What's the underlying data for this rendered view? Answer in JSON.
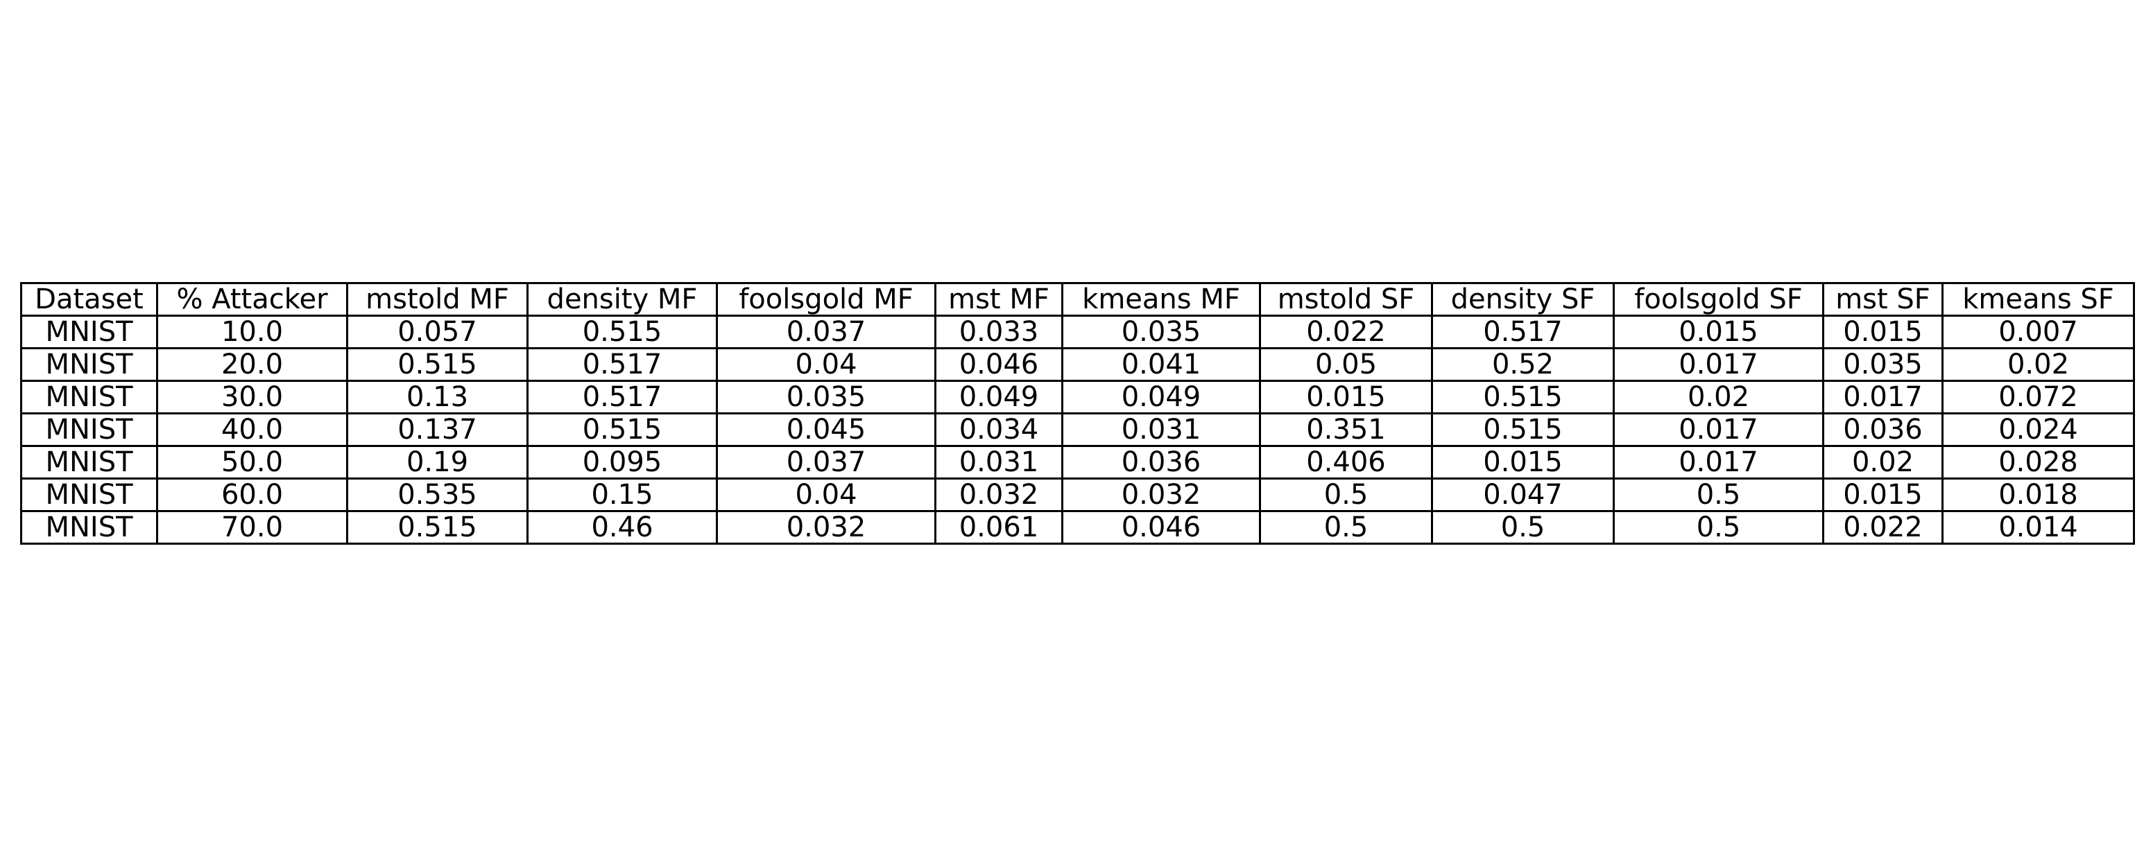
{
  "chart_data": {
    "type": "table",
    "columns": [
      "Dataset",
      "% Attacker",
      "mstold MF",
      "density MF",
      "foolsgold MF",
      "mst MF",
      "kmeans MF",
      "mstold SF",
      "density SF",
      "foolsgold SF",
      "mst SF",
      "kmeans SF"
    ],
    "rows": [
      [
        "MNIST",
        "10.0",
        "0.057",
        "0.515",
        "0.037",
        "0.033",
        "0.035",
        "0.022",
        "0.517",
        "0.015",
        "0.015",
        "0.007"
      ],
      [
        "MNIST",
        "20.0",
        "0.515",
        "0.517",
        "0.04",
        "0.046",
        "0.041",
        "0.05",
        "0.52",
        "0.017",
        "0.035",
        "0.02"
      ],
      [
        "MNIST",
        "30.0",
        "0.13",
        "0.517",
        "0.035",
        "0.049",
        "0.049",
        "0.015",
        "0.515",
        "0.02",
        "0.017",
        "0.072"
      ],
      [
        "MNIST",
        "40.0",
        "0.137",
        "0.515",
        "0.045",
        "0.034",
        "0.031",
        "0.351",
        "0.515",
        "0.017",
        "0.036",
        "0.024"
      ],
      [
        "MNIST",
        "50.0",
        "0.19",
        "0.095",
        "0.037",
        "0.031",
        "0.036",
        "0.406",
        "0.015",
        "0.017",
        "0.02",
        "0.028"
      ],
      [
        "MNIST",
        "60.0",
        "0.535",
        "0.15",
        "0.04",
        "0.032",
        "0.032",
        "0.5",
        "0.047",
        "0.5",
        "0.015",
        "0.018"
      ],
      [
        "MNIST",
        "70.0",
        "0.515",
        "0.46",
        "0.032",
        "0.061",
        "0.046",
        "0.5",
        "0.5",
        "0.5",
        "0.022",
        "0.014"
      ]
    ]
  }
}
